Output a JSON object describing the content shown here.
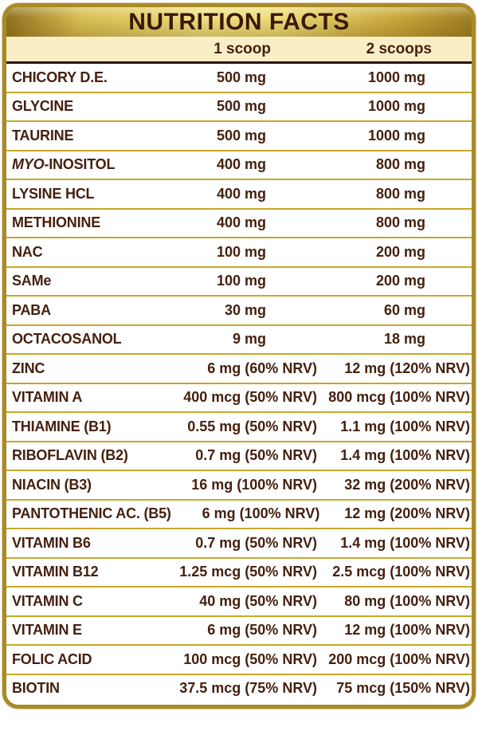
{
  "header": {
    "title": "NUTRITION FACTS"
  },
  "columns": {
    "col1": "1 scoop",
    "col2": "2 scoops"
  },
  "colors": {
    "border_gold": "#a98b25",
    "divider_gold": "#c9a72c",
    "column_band_cream": "#f9eec6",
    "text_maroon": "#45200f",
    "dark_rule": "#2a140a",
    "header_gradient_light": "#f0e081",
    "header_gradient_dark": "#8e6f1d"
  },
  "table": {
    "rows": [
      {
        "label": "CHICORY D.E.",
        "scoop1": "500 mg",
        "scoop2": "1000 mg",
        "nrv": false
      },
      {
        "label": "GLYCINE",
        "scoop1": "500 mg",
        "scoop2": "1000 mg",
        "nrv": false
      },
      {
        "label": "TAURINE",
        "scoop1": "500 mg",
        "scoop2": "1000 mg",
        "nrv": false
      },
      {
        "label": "MYO-INOSITOL",
        "italic_prefix": "MYO",
        "label_rest": "-INOSITOL",
        "scoop1": "400 mg",
        "scoop2": "800 mg",
        "nrv": false
      },
      {
        "label": "LYSINE HCL",
        "scoop1": "400 mg",
        "scoop2": "800 mg",
        "nrv": false
      },
      {
        "label": "METHIONINE",
        "scoop1": "400 mg",
        "scoop2": "800 mg",
        "nrv": false
      },
      {
        "label": "NAC",
        "scoop1": "100 mg",
        "scoop2": "200 mg",
        "nrv": false
      },
      {
        "label": "SAMe",
        "scoop1": "100 mg",
        "scoop2": "200 mg",
        "nrv": false
      },
      {
        "label": "PABA",
        "scoop1": "30 mg",
        "scoop2": "60 mg",
        "nrv": false
      },
      {
        "label": "OCTACOSANOL",
        "scoop1": "9 mg",
        "scoop2": "18 mg",
        "nrv": false
      },
      {
        "label": "ZINC",
        "scoop1": "6 mg (60% NRV)",
        "scoop2": "12 mg (120% NRV)",
        "nrv": true
      },
      {
        "label": "VITAMIN A",
        "scoop1": "400 mcg (50% NRV)",
        "scoop2": "800 mcg (100% NRV)",
        "nrv": true
      },
      {
        "label": "THIAMINE (B1)",
        "scoop1": "0.55 mg (50% NRV)",
        "scoop2": "1.1 mg (100% NRV)",
        "nrv": true
      },
      {
        "label": "RIBOFLAVIN (B2)",
        "scoop1": "0.7 mg (50% NRV)",
        "scoop2": "1.4 mg (100% NRV)",
        "nrv": true
      },
      {
        "label": "NIACIN (B3)",
        "scoop1": "16 mg (100% NRV)",
        "scoop2": "32 mg (200% NRV)",
        "nrv": true
      },
      {
        "label": "PANTOTHENIC AC. (B5)",
        "scoop1": "6 mg (100% NRV)",
        "scoop2": "12 mg (200% NRV)",
        "nrv": true
      },
      {
        "label": "VITAMIN B6",
        "scoop1": "0.7 mg (50% NRV)",
        "scoop2": "1.4 mg (100% NRV)",
        "nrv": true
      },
      {
        "label": "VITAMIN B12",
        "scoop1": "1.25 mcg (50% NRV)",
        "scoop2": "2.5 mcg (100% NRV)",
        "nrv": true
      },
      {
        "label": "VITAMIN C",
        "scoop1": "40 mg (50% NRV)",
        "scoop2": "80 mg (100% NRV)",
        "nrv": true
      },
      {
        "label": "VITAMIN E",
        "scoop1": "6 mg (50% NRV)",
        "scoop2": "12 mg (100% NRV)",
        "nrv": true
      },
      {
        "label": "FOLIC ACID",
        "scoop1": "100 mcg (50% NRV)",
        "scoop2": "200 mcg (100% NRV)",
        "nrv": true
      },
      {
        "label": "BIOTIN",
        "scoop1": "37.5 mcg (75% NRV)",
        "scoop2": "75 mcg (150% NRV)",
        "nrv": true
      }
    ]
  }
}
